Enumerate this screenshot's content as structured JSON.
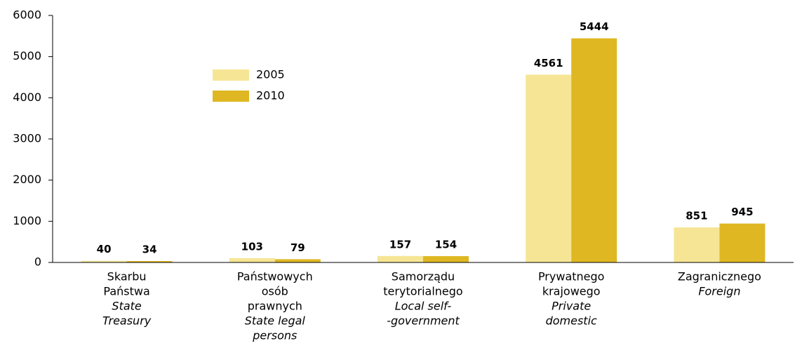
{
  "chart_data": {
    "type": "bar",
    "categories": [
      {
        "pl": [
          "Skarbu",
          "Państwa"
        ],
        "en": [
          "State",
          "Treasury"
        ]
      },
      {
        "pl": [
          "Państwowych",
          "osób",
          "prawnych"
        ],
        "en": [
          "State legal",
          "persons"
        ]
      },
      {
        "pl": [
          "Samorządu",
          "terytorialnego"
        ],
        "en": [
          "Local self-",
          "-government"
        ]
      },
      {
        "pl": [
          "Prywatnego",
          "krajowego"
        ],
        "en": [
          "Private",
          "domestic"
        ]
      },
      {
        "pl": [
          "Zagranicznego"
        ],
        "en": [
          "Foreign"
        ]
      }
    ],
    "series": [
      {
        "name": "2005",
        "color": "#f6e594",
        "values": [
          40,
          103,
          157,
          4561,
          851
        ]
      },
      {
        "name": "2010",
        "color": "#dfb722",
        "values": [
          34,
          79,
          154,
          5444,
          945
        ]
      }
    ],
    "ylim": [
      0,
      6000
    ],
    "yticks": [
      0,
      1000,
      2000,
      3000,
      4000,
      5000,
      6000
    ],
    "grid": false
  }
}
